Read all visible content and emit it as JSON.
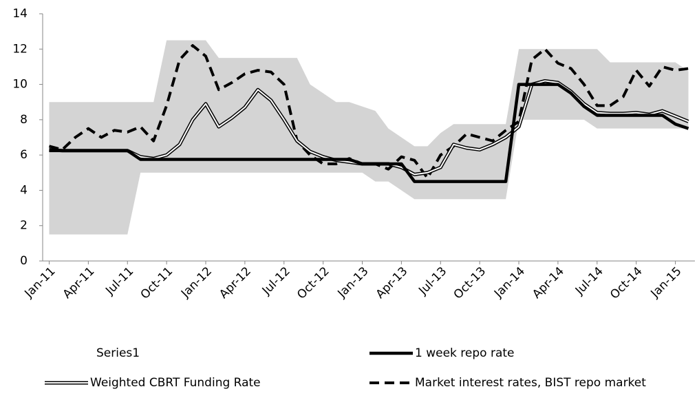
{
  "chart_data": {
    "type": "line",
    "categories": [
      "Jan-11",
      null,
      null,
      "Apr-11",
      null,
      null,
      "Jul-11",
      null,
      null,
      "Oct-11",
      null,
      null,
      "Jan-12",
      null,
      null,
      "Apr-12",
      null,
      null,
      "Jul-12",
      null,
      null,
      "Oct-12",
      null,
      null,
      "Jan-13",
      null,
      null,
      "Apr-13",
      null,
      null,
      "Jul-13",
      null,
      null,
      "Oct-13",
      null,
      null,
      "Jan-14",
      null,
      null,
      "Apr-14",
      null,
      null,
      "Jul-14",
      null,
      null,
      "Oct-14",
      null,
      null,
      "Jan-15",
      null
    ],
    "ylim": [
      0,
      14
    ],
    "yticks": [
      0,
      2,
      4,
      6,
      8,
      10,
      12,
      14
    ],
    "series": [
      {
        "name": "Series1",
        "color": "#d4d4d4",
        "high": [
          9,
          9,
          9,
          9,
          9,
          9,
          9,
          9,
          9,
          12.5,
          12.5,
          12.5,
          12.5,
          11.5,
          11.5,
          11.5,
          11.5,
          11.5,
          11.5,
          11.5,
          10,
          9.5,
          9,
          9,
          8.75,
          8.5,
          7.5,
          7,
          6.5,
          6.5,
          7.25,
          7.75,
          7.75,
          7.75,
          7.75,
          7.75,
          12,
          12,
          12,
          12,
          12,
          12,
          12,
          11.25,
          11.25,
          11.25,
          11.25,
          11.25,
          11.25,
          10.75
        ],
        "low": [
          1.5,
          1.5,
          1.5,
          1.5,
          1.5,
          1.5,
          1.5,
          5,
          5,
          5,
          5,
          5,
          5,
          5,
          5,
          5,
          5,
          5,
          5,
          5,
          5,
          5,
          5,
          5,
          5,
          4.5,
          4.5,
          4,
          3.5,
          3.5,
          3.5,
          3.5,
          3.5,
          3.5,
          3.5,
          3.5,
          8,
          8,
          8,
          8,
          8,
          8,
          7.5,
          7.5,
          7.5,
          7.5,
          7.5,
          7.5,
          7.5,
          7.5
        ]
      },
      {
        "name": "1 week repo rate",
        "color": "#000000",
        "values": [
          6.25,
          6.25,
          6.25,
          6.25,
          6.25,
          6.25,
          6.25,
          5.75,
          5.75,
          5.75,
          5.75,
          5.75,
          5.75,
          5.75,
          5.75,
          5.75,
          5.75,
          5.75,
          5.75,
          5.75,
          5.75,
          5.75,
          5.75,
          5.75,
          5.5,
          5.5,
          5.5,
          5.5,
          4.5,
          4.5,
          4.5,
          4.5,
          4.5,
          4.5,
          4.5,
          4.5,
          10,
          10,
          10,
          10,
          9.5,
          8.75,
          8.25,
          8.25,
          8.25,
          8.25,
          8.25,
          8.25,
          7.75,
          7.5
        ]
      },
      {
        "name": "Weighted CBRT Funding Rate",
        "color": "#000000",
        "values": [
          6.3,
          6.25,
          6.25,
          6.25,
          6.25,
          6.25,
          6.25,
          5.9,
          5.8,
          6.0,
          6.6,
          8.0,
          8.9,
          7.6,
          8.1,
          8.7,
          9.7,
          9.1,
          8.0,
          6.8,
          6.2,
          5.9,
          5.7,
          5.6,
          5.5,
          5.5,
          5.5,
          5.3,
          4.9,
          5.0,
          5.3,
          6.6,
          6.4,
          6.3,
          6.6,
          7.0,
          7.6,
          10.0,
          10.2,
          10.1,
          9.6,
          8.9,
          8.4,
          8.35,
          8.35,
          8.4,
          8.3,
          8.5,
          8.2,
          7.9
        ]
      },
      {
        "name": "Market interest rates, BIST repo market",
        "color": "#000000",
        "values": [
          6.5,
          6.3,
          7.0,
          7.5,
          7.0,
          7.4,
          7.3,
          7.6,
          6.8,
          8.8,
          11.4,
          12.2,
          11.6,
          9.7,
          10.1,
          10.6,
          10.8,
          10.7,
          10.0,
          6.8,
          6.0,
          5.5,
          5.5,
          5.8,
          5.5,
          5.5,
          5.2,
          5.9,
          5.7,
          4.7,
          6.0,
          6.5,
          7.2,
          7.0,
          6.8,
          7.4,
          7.9,
          11.4,
          12.0,
          11.2,
          10.9,
          10.0,
          8.8,
          8.8,
          9.3,
          10.8,
          9.9,
          11.0,
          10.8,
          10.9
        ]
      }
    ]
  }
}
